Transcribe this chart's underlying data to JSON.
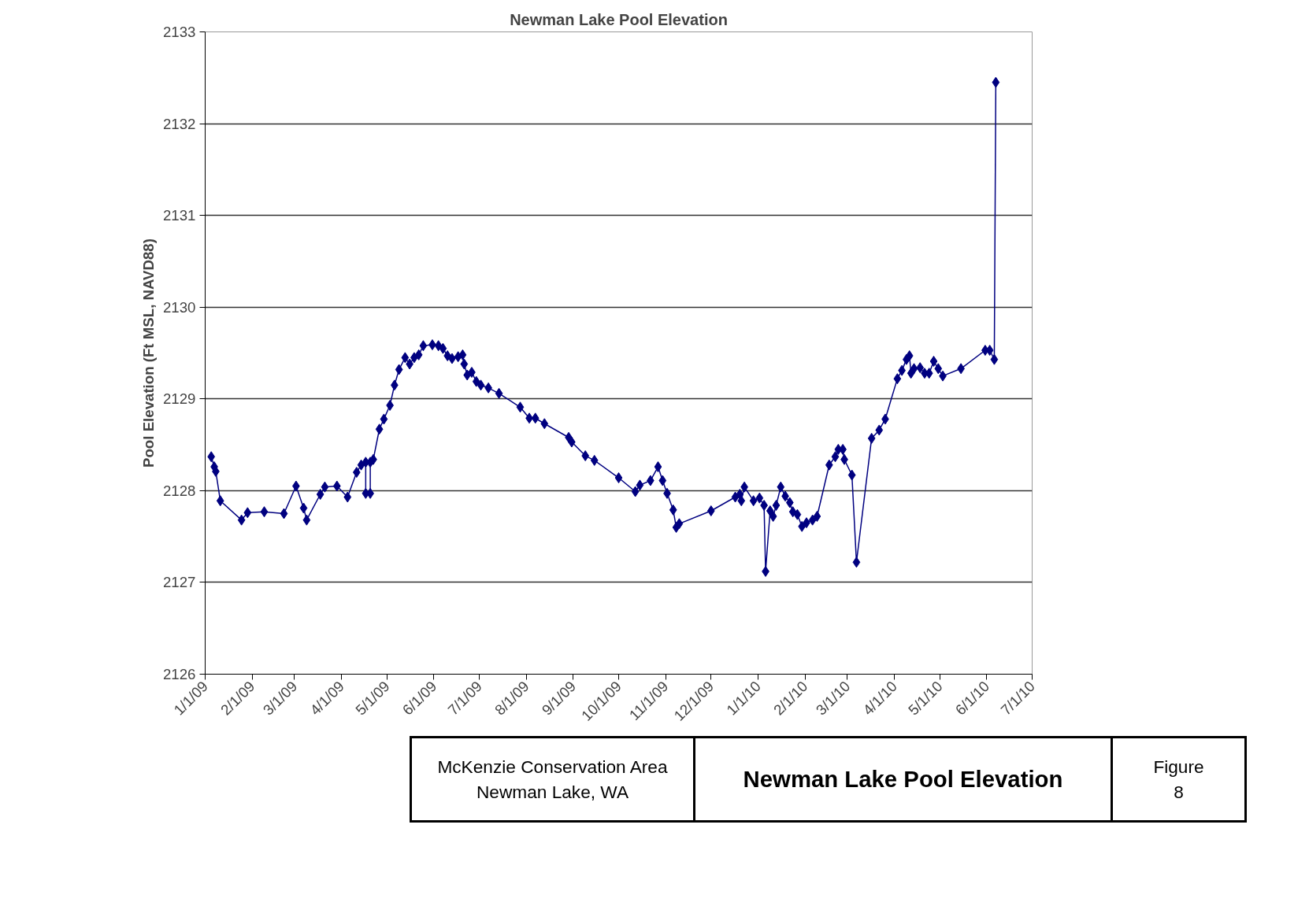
{
  "chart_data": {
    "type": "line",
    "title": "Newman Lake Pool Elevation",
    "ylabel": "Pool Elevation (Ft MSL, NAVD88)",
    "x": [
      "2009-01-05",
      "2009-01-07",
      "2009-01-08",
      "2009-01-11",
      "2009-01-25",
      "2009-01-29",
      "2009-02-09",
      "2009-02-22",
      "2009-03-02",
      "2009-03-07",
      "2009-03-09",
      "2009-03-18",
      "2009-03-21",
      "2009-03-29",
      "2009-04-05",
      "2009-04-11",
      "2009-04-14",
      "2009-04-17",
      "2009-04-17",
      "2009-04-20",
      "2009-04-20",
      "2009-04-22",
      "2009-04-26",
      "2009-04-29",
      "2009-05-03",
      "2009-05-06",
      "2009-05-09",
      "2009-05-13",
      "2009-05-16",
      "2009-05-19",
      "2009-05-22",
      "2009-05-25",
      "2009-05-31",
      "2009-06-04",
      "2009-06-07",
      "2009-06-10",
      "2009-06-13",
      "2009-06-17",
      "2009-06-20",
      "2009-06-21",
      "2009-06-23",
      "2009-06-26",
      "2009-06-29",
      "2009-07-02",
      "2009-07-07",
      "2009-07-14",
      "2009-07-28",
      "2009-08-03",
      "2009-08-07",
      "2009-08-13",
      "2009-08-29",
      "2009-08-31",
      "2009-09-09",
      "2009-09-15",
      "2009-10-01",
      "2009-10-12",
      "2009-10-15",
      "2009-10-22",
      "2009-10-27",
      "2009-10-30",
      "2009-11-02",
      "2009-11-06",
      "2009-11-08",
      "2009-11-10",
      "2009-12-01",
      "2009-12-17",
      "2009-12-20",
      "2009-12-21",
      "2009-12-23",
      "2009-12-29",
      "2010-01-02",
      "2010-01-05",
      "2010-01-06",
      "2010-01-09",
      "2010-01-11",
      "2010-01-13",
      "2010-01-16",
      "2010-01-19",
      "2010-01-22",
      "2010-01-24",
      "2010-01-27",
      "2010-01-30",
      "2010-02-02",
      "2010-02-06",
      "2010-02-09",
      "2010-02-17",
      "2010-02-21",
      "2010-02-23",
      "2010-02-26",
      "2010-02-27",
      "2010-03-04",
      "2010-03-07",
      "2010-03-17",
      "2010-03-22",
      "2010-03-26",
      "2010-04-03",
      "2010-04-06",
      "2010-04-09",
      "2010-04-11",
      "2010-04-12",
      "2010-04-14",
      "2010-04-18",
      "2010-04-21",
      "2010-04-24",
      "2010-04-27",
      "2010-04-30",
      "2010-05-03",
      "2010-05-15",
      "2010-05-31",
      "2010-06-03",
      "2010-06-06",
      "2010-06-07"
    ],
    "series": [
      {
        "color": "#000080",
        "values": [
          2128.37,
          2128.26,
          2128.21,
          2127.89,
          2127.68,
          2127.76,
          2127.77,
          2127.75,
          2128.05,
          2127.81,
          2127.68,
          2127.96,
          2128.04,
          2128.05,
          2127.93,
          2128.2,
          2128.28,
          2128.31,
          2127.97,
          2127.97,
          2128.31,
          2128.34,
          2128.67,
          2128.78,
          2128.93,
          2129.15,
          2129.32,
          2129.45,
          2129.38,
          2129.45,
          2129.48,
          2129.58,
          2129.59,
          2129.58,
          2129.55,
          2129.47,
          2129.44,
          2129.46,
          2129.48,
          2129.38,
          2129.26,
          2129.29,
          2129.19,
          2129.15,
          2129.12,
          2129.06,
          2128.91,
          2128.79,
          2128.79,
          2128.73,
          2128.58,
          2128.53,
          2128.38,
          2128.33,
          2128.14,
          2127.99,
          2128.06,
          2128.11,
          2128.26,
          2128.11,
          2127.97,
          2127.79,
          2127.6,
          2127.64,
          2127.78,
          2127.93,
          2127.96,
          2127.89,
          2128.04,
          2127.89,
          2127.92,
          2127.84,
          2127.12,
          2127.78,
          2127.72,
          2127.84,
          2128.04,
          2127.94,
          2127.87,
          2127.77,
          2127.74,
          2127.61,
          2127.65,
          2127.68,
          2127.72,
          2128.28,
          2128.37,
          2128.45,
          2128.45,
          2128.34,
          2128.17,
          2127.22,
          2128.57,
          2128.66,
          2128.78,
          2129.22,
          2129.31,
          2129.43,
          2129.47,
          2129.28,
          2129.33,
          2129.34,
          2129.28,
          2129.28,
          2129.41,
          2129.33,
          2129.25,
          2129.33,
          2129.53,
          2129.53,
          2129.43,
          2132.45
        ]
      }
    ],
    "marker": "diamond",
    "line_style": "solid",
    "grid": "y",
    "xlim": [
      "2009-01-01",
      "2010-07-01"
    ],
    "xticks": [
      {
        "value": "2009-01-01",
        "label": "1/1/09"
      },
      {
        "value": "2009-02-01",
        "label": "2/1/09"
      },
      {
        "value": "2009-03-01",
        "label": "3/1/09"
      },
      {
        "value": "2009-04-01",
        "label": "4/1/09"
      },
      {
        "value": "2009-05-01",
        "label": "5/1/09"
      },
      {
        "value": "2009-06-01",
        "label": "6/1/09"
      },
      {
        "value": "2009-07-01",
        "label": "7/1/09"
      },
      {
        "value": "2009-08-01",
        "label": "8/1/09"
      },
      {
        "value": "2009-09-01",
        "label": "9/1/09"
      },
      {
        "value": "2009-10-01",
        "label": "10/1/09"
      },
      {
        "value": "2009-11-01",
        "label": "11/1/09"
      },
      {
        "value": "2009-12-01",
        "label": "12/1/09"
      },
      {
        "value": "2010-01-01",
        "label": "1/1/10"
      },
      {
        "value": "2010-02-01",
        "label": "2/1/10"
      },
      {
        "value": "2010-03-01",
        "label": "3/1/10"
      },
      {
        "value": "2010-04-01",
        "label": "4/1/10"
      },
      {
        "value": "2010-05-01",
        "label": "5/1/10"
      },
      {
        "value": "2010-06-01",
        "label": "6/1/10"
      },
      {
        "value": "2010-07-01",
        "label": "7/1/10"
      }
    ],
    "ylim": [
      2126,
      2133
    ],
    "yticks": [
      2126,
      2127,
      2128,
      2129,
      2130,
      2131,
      2132,
      2133
    ],
    "annotations": [
      "McKenzie Conservation Area\nNewman Lake, WA",
      "Newman Lake Pool Elevation",
      "Figure\n8"
    ]
  }
}
